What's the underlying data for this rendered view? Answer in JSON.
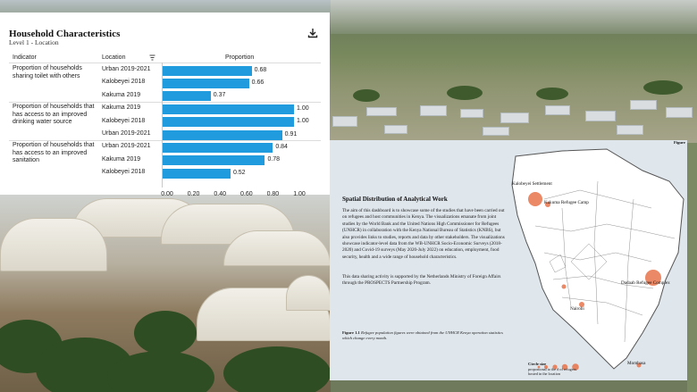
{
  "chart_panel": {
    "title": "Household Characteristics",
    "subtitle": "Level 1 - Location",
    "download_icon": "download-icon",
    "columns": {
      "indicator": "Indicator",
      "location": "Location",
      "proportion": "Proportion"
    },
    "filter_icon": "filter-icon",
    "bar_color": "#1f9bde"
  },
  "chart_data": {
    "type": "bar",
    "orientation": "horizontal",
    "xlim": [
      0,
      1
    ],
    "ticks": [
      "0.00",
      "0.20",
      "0.40",
      "0.60",
      "0.80",
      "1.00"
    ],
    "groups": [
      {
        "indicator": "Proportion of households sharing toilet with others",
        "rows": [
          {
            "location": "Urban 2019-2021",
            "value": 0.68,
            "label": "0.68"
          },
          {
            "location": "Kalobeyei 2018",
            "value": 0.66,
            "label": "0.66"
          },
          {
            "location": "Kakuma 2019",
            "value": 0.37,
            "label": "0.37"
          }
        ]
      },
      {
        "indicator": "Proportion of households that has access to an improved drinking water source",
        "rows": [
          {
            "location": "Kakuma 2019",
            "value": 1.0,
            "label": "1.00"
          },
          {
            "location": "Kalobeyei 2018",
            "value": 1.0,
            "label": "1.00"
          },
          {
            "location": "Urban 2019-2021",
            "value": 0.91,
            "label": "0.91"
          }
        ]
      },
      {
        "indicator": "Proportion of households that has access to an improved sanitation",
        "rows": [
          {
            "location": "Urban 2019-2021",
            "value": 0.84,
            "label": "0.84"
          },
          {
            "location": "Kakuma 2019",
            "value": 0.78,
            "label": "0.78"
          },
          {
            "location": "Kalobeyei 2018",
            "value": 0.52,
            "label": "0.52"
          }
        ]
      }
    ]
  },
  "document": {
    "figure_label": "Figure 1.1",
    "heading": "Spatial Distribution of Analytical Work",
    "paragraph1": "The aim of this dashboard is to showcase some of the studies that have been carried out on refugees and host communities in Kenya. The visualizations emanate from joint studies by the World Bank and the United Nations High Commissioner for Refugees (UNHCR) in collaboration with the Kenya National Bureau of Statistics (KNBS), but also provides links to studies, reports and data by other stakeholders. The visualizations showcase indicator-level data from the WB-UNHCR Socio-Economic Surveys (2018-2020) and Covid-19 surveys (May 2020-July 2022) on education, employment, food security, health and a wide range of household characteristics.",
    "paragraph2": "This data sharing activity is supported by the Netherlands Ministry of Foreign Affairs through the PROSPECTS Partnership Program.",
    "caption_label": "Figure 1.1",
    "caption_text": "Refugee population figures were obtained from the UNHCR Kenya operation statistics which change every month.",
    "map": {
      "places": [
        {
          "name": "Kalobeyei Settlement"
        },
        {
          "name": "Kakuma Refugee Camp"
        },
        {
          "name": "Dadaab Refugee Complex"
        },
        {
          "name": "Nairobi"
        },
        {
          "name": "Mombasa"
        }
      ],
      "marker_color": "#e8734a",
      "legend_title": "Circle size",
      "legend_text": "proportional to the # of refugees hosted in the location"
    }
  }
}
